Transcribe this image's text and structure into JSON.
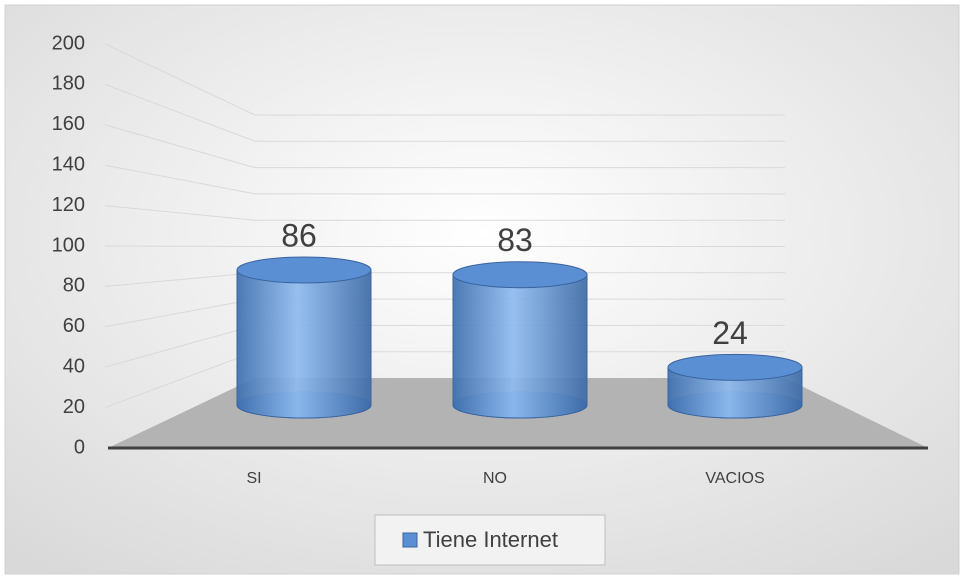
{
  "chart_data": {
    "type": "bar3d",
    "categories": [
      "SI",
      "NO",
      "VACIOS"
    ],
    "series": [
      {
        "name": "Tiene Internet",
        "color": "#5b8fd4",
        "values": [
          86,
          83,
          24
        ]
      }
    ],
    "ylim": [
      0,
      200
    ],
    "yticks": [
      0,
      20,
      40,
      60,
      80,
      100,
      120,
      140,
      160,
      180,
      200
    ],
    "grid": true,
    "legend": "bottom"
  }
}
